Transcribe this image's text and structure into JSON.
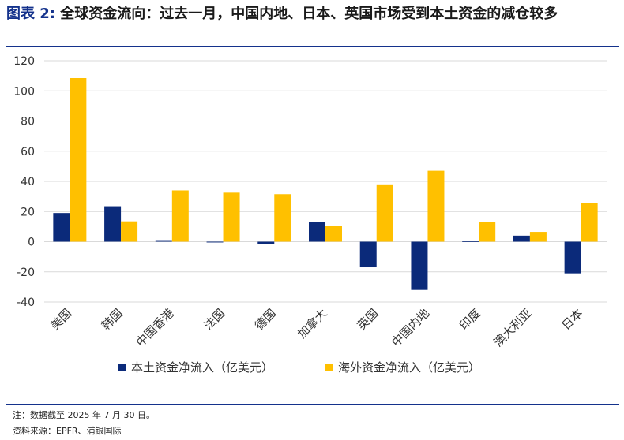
{
  "title": {
    "label": "图表 2:",
    "text": "全球资金流向：过去一月，中国内地、日本、英国市场受到本土资金的减仓较多"
  },
  "chart_data": {
    "type": "bar",
    "categories": [
      "美国",
      "韩国",
      "中国香港",
      "法国",
      "德国",
      "加拿大",
      "英国",
      "中国内地",
      "印度",
      "澳大利亚",
      "日本"
    ],
    "series": [
      {
        "name": "本土资金净流入（亿美元）",
        "color": "#0b2a7a",
        "values": [
          19,
          23.5,
          1,
          -0.5,
          -1.5,
          13,
          -17,
          -32,
          0.2,
          4,
          -21
        ]
      },
      {
        "name": "海外资金净流入（亿美元）",
        "color": "#ffc000",
        "values": [
          108.5,
          13.5,
          34,
          32.5,
          31.5,
          10.5,
          38,
          47,
          13,
          6.5,
          25.5
        ]
      }
    ],
    "yticks": [
      120,
      100,
      80,
      60,
      40,
      20,
      0,
      -20,
      -40
    ],
    "ylim": [
      -40,
      120
    ],
    "grid": true,
    "legend_position": "bottom"
  },
  "footnotes": {
    "note": "注：数据截至 2025 年 7 月 30 日。",
    "source": "资料来源：EPFR、浦银国际"
  }
}
